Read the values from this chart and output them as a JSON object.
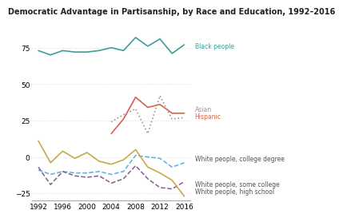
{
  "title": "Democratic Advantage in Partisanship, by Race and Education, 1992–2016",
  "years": [
    1992,
    1994,
    1996,
    1998,
    2000,
    2002,
    2004,
    2006,
    2008,
    2010,
    2012,
    2014,
    2016
  ],
  "black": [
    73,
    70,
    73,
    72,
    72,
    73,
    75,
    73,
    82,
    76,
    81,
    71,
    77
  ],
  "hispanic_years": [
    2004,
    2006,
    2008,
    2010,
    2012,
    2014,
    2016
  ],
  "hispanic_values": [
    16,
    26,
    41,
    34,
    36,
    30,
    30
  ],
  "asian_years": [
    2004,
    2006,
    2008,
    2010,
    2012,
    2014,
    2016
  ],
  "asian_values": [
    24,
    29,
    33,
    16,
    42,
    26,
    27
  ],
  "white_college": [
    -9,
    -12,
    -10,
    -11,
    -11,
    -10,
    -12,
    -10,
    1,
    0,
    -1,
    -7,
    -4
  ],
  "white_some_college": [
    -7,
    -19,
    -10,
    -13,
    -14,
    -13,
    -18,
    -15,
    -6,
    -15,
    -21,
    -22,
    -17
  ],
  "white_highschool": [
    11,
    -4,
    4,
    -1,
    3,
    -3,
    -5,
    -2,
    5,
    -7,
    -11,
    -16,
    -27
  ],
  "ylim": [
    -30,
    90
  ],
  "yticks": [
    -25,
    0,
    25,
    50,
    75
  ],
  "xticks": [
    1992,
    1996,
    2000,
    2004,
    2008,
    2012,
    2016
  ],
  "color_black": "#3d9e96",
  "color_hispanic": "#d4614a",
  "color_asian": "#999999",
  "color_white_college": "#5aafe0",
  "color_white_some_college": "#8b5a8b",
  "color_white_highschool": "#c8a84b",
  "label_black": "Black people",
  "label_hispanic": "Hispanic",
  "label_asian": "Asian",
  "label_white_college": "White people, college degree",
  "label_white_some_college": "White people, some college",
  "label_white_highschool": "White people, high school",
  "label_color_black": "#3d9e96",
  "label_color_hispanic": "#d4614a",
  "label_color_asian": "#999999",
  "label_color_white": "#555555"
}
